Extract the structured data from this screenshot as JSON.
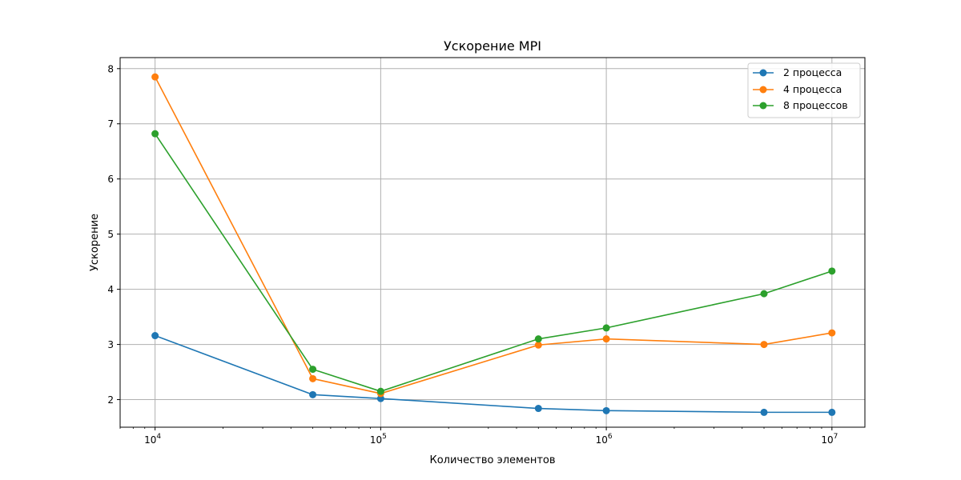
{
  "chart_data": {
    "type": "line",
    "title": "Ускорение MPI",
    "xlabel": "Количество элементов",
    "ylabel": "Ускорение",
    "x_scale": "log",
    "xlim": [
      7000,
      14000000
    ],
    "ylim": [
      1.5,
      8.2
    ],
    "x": [
      10000,
      50000,
      100000,
      500000,
      1000000,
      5000000,
      10000000
    ],
    "x_ticks": [
      10000,
      100000,
      1000000,
      10000000
    ],
    "x_tick_labels": [
      {
        "base": "10",
        "exp": "4"
      },
      {
        "base": "10",
        "exp": "5"
      },
      {
        "base": "10",
        "exp": "6"
      },
      {
        "base": "10",
        "exp": "7"
      }
    ],
    "y_ticks": [
      2,
      3,
      4,
      5,
      6,
      7,
      8
    ],
    "y_tick_labels": [
      "2",
      "3",
      "4",
      "5",
      "6",
      "7",
      "8"
    ],
    "grid": true,
    "legend_position": "top-right",
    "series": [
      {
        "name": "2 процесса",
        "color": "#1f77b4",
        "values": [
          3.16,
          2.09,
          2.02,
          1.84,
          1.8,
          1.77,
          1.77
        ]
      },
      {
        "name": "4 процесса",
        "color": "#ff7f0e",
        "values": [
          7.85,
          2.38,
          2.11,
          2.99,
          3.1,
          3.0,
          3.21
        ]
      },
      {
        "name": "8 процессов",
        "color": "#2ca02c",
        "values": [
          6.82,
          2.55,
          2.15,
          3.1,
          3.3,
          3.92,
          4.33
        ]
      }
    ]
  }
}
